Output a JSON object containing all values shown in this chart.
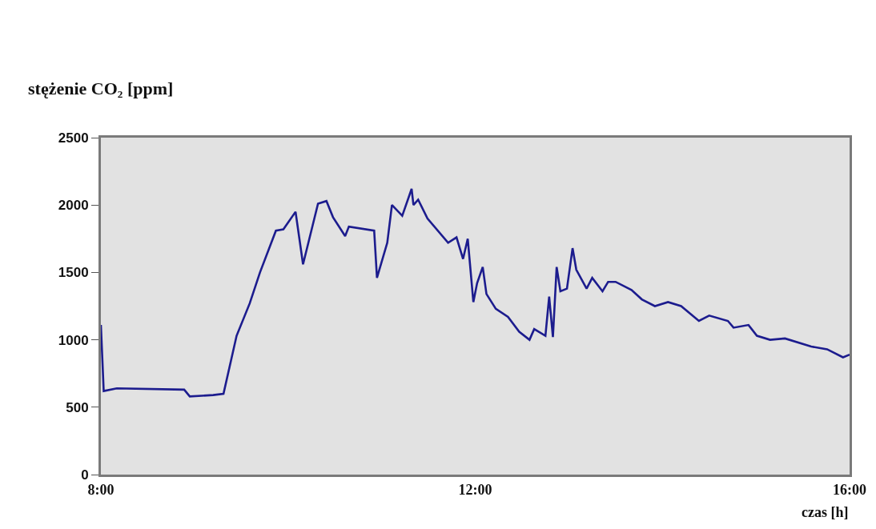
{
  "chart_data": {
    "type": "line",
    "ylabel": "stężenie CO₂ [ppm]",
    "xlabel": "czas [h]",
    "x": [
      8.0,
      8.03,
      8.17,
      8.89,
      8.95,
      9.2,
      9.31,
      9.45,
      9.59,
      9.7,
      9.87,
      9.95,
      10.08,
      10.16,
      10.32,
      10.41,
      10.48,
      10.61,
      10.65,
      10.92,
      10.95,
      11.06,
      11.11,
      11.22,
      11.32,
      11.34,
      11.39,
      11.49,
      11.71,
      11.8,
      11.87,
      11.92,
      11.98,
      12.02,
      12.08,
      12.12,
      12.22,
      12.35,
      12.47,
      12.58,
      12.63,
      12.75,
      12.79,
      12.83,
      12.87,
      12.91,
      12.98,
      13.04,
      13.08,
      13.19,
      13.25,
      13.36,
      13.42,
      13.5,
      13.67,
      13.78,
      13.92,
      14.06,
      14.2,
      14.39,
      14.5,
      14.7,
      14.76,
      14.92,
      15.01,
      15.15,
      15.31,
      15.59,
      15.76,
      15.93,
      16.0
    ],
    "series": [
      {
        "color": "#1c1c8e",
        "values": [
          1110,
          620,
          640,
          630,
          580,
          590,
          600,
          1030,
          1270,
          1500,
          1810,
          1820,
          1950,
          1560,
          2010,
          2030,
          1910,
          1770,
          1840,
          1810,
          1460,
          1720,
          2000,
          1920,
          2120,
          2000,
          2040,
          1900,
          1720,
          1760,
          1600,
          1750,
          1280,
          1420,
          1540,
          1340,
          1230,
          1170,
          1060,
          1000,
          1080,
          1030,
          1320,
          1020,
          1540,
          1360,
          1380,
          1680,
          1520,
          1380,
          1460,
          1360,
          1430,
          1430,
          1370,
          1300,
          1250,
          1280,
          1250,
          1140,
          1180,
          1140,
          1090,
          1110,
          1030,
          1000,
          1010,
          950,
          930,
          870,
          890
        ]
      }
    ],
    "xlim": [
      8,
      16
    ],
    "xticks": [
      {
        "value": 8,
        "label": "8:00"
      },
      {
        "value": 12,
        "label": "12:00"
      },
      {
        "value": 16,
        "label": "16:00"
      }
    ],
    "ylim": [
      0,
      2500
    ],
    "yticks": [
      0,
      500,
      1000,
      1500,
      2000,
      2500
    ],
    "grid": false,
    "marker": "none",
    "line_style": "solid"
  }
}
